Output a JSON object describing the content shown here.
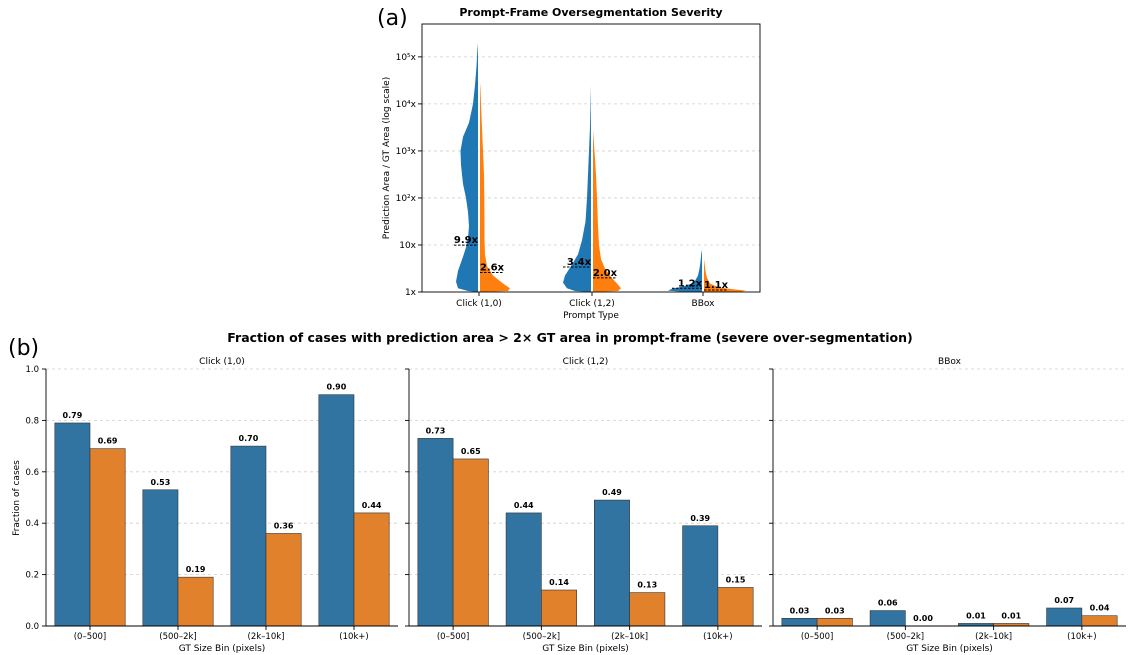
{
  "panel_a": {
    "label": "(a)",
    "chart_data": {
      "type": "violin",
      "title": "Prompt-Frame Oversegmentation Severity",
      "xlabel": "Prompt Type",
      "ylabel": "Prediction Area / GT Area (log scale)",
      "yscale": "log",
      "ylim": [
        1,
        500000
      ],
      "ytick_labels": [
        "1x",
        "10x",
        "10²x",
        "10³x",
        "10⁴x",
        "10⁵x"
      ],
      "ytick_values": [
        1,
        10,
        100,
        1000,
        10000,
        100000
      ],
      "categories": [
        "Click (1,0)",
        "Click (1,2)",
        "BBox"
      ],
      "grid": true,
      "medians": [
        {
          "category": "Click (1,0)",
          "left": 9.9,
          "right": 2.6,
          "left_label": "9.9x",
          "right_label": "2.6x"
        },
        {
          "category": "Click (1,2)",
          "left": 3.4,
          "right": 2.0,
          "left_label": "3.4x",
          "right_label": "2.0x"
        },
        {
          "category": "BBox",
          "left": 1.2,
          "right": 1.1,
          "left_label": "1.2x",
          "right_label": "1.1x"
        }
      ],
      "max_values": [
        {
          "category": "Click (1,0)",
          "left": 200000,
          "right": 20000
        },
        {
          "category": "Click (1,2)",
          "left": 30000,
          "right": 1000
        },
        {
          "category": "BBox",
          "left": 7,
          "right": 4
        }
      ]
    }
  },
  "panel_b": {
    "label": "(b)",
    "title": "Fraction of cases with prediction area > 2× GT area in prompt-frame (severe over-segmentation)",
    "ylabel": "Fraction of cases",
    "xlabel": "GT Size Bin (pixels)",
    "ytick_labels": [
      "0.0",
      "0.2",
      "0.4",
      "0.6",
      "0.8",
      "1.0"
    ],
    "chart_data": [
      {
        "type": "bar",
        "title": "Click (1,0)",
        "categories": [
          "(0–500]",
          "(500–2k]",
          "(2k–10k]",
          "(10k+)"
        ],
        "ylim": [
          0,
          1.0
        ],
        "series": [
          {
            "values": [
              0.79,
              0.53,
              0.7,
              0.9
            ],
            "labels": [
              "0.79",
              "0.53",
              "0.70",
              "0.90"
            ],
            "color": "#3274a1"
          },
          {
            "values": [
              0.69,
              0.19,
              0.36,
              0.44
            ],
            "labels": [
              "0.69",
              "0.19",
              "0.36",
              "0.44"
            ],
            "color": "#e1812c"
          }
        ]
      },
      {
        "type": "bar",
        "title": "Click (1,2)",
        "categories": [
          "(0–500]",
          "(500–2k]",
          "(2k–10k]",
          "(10k+)"
        ],
        "ylim": [
          0,
          1.0
        ],
        "series": [
          {
            "values": [
              0.73,
              0.44,
              0.49,
              0.39
            ],
            "labels": [
              "0.73",
              "0.44",
              "0.49",
              "0.39"
            ],
            "color": "#3274a1"
          },
          {
            "values": [
              0.65,
              0.14,
              0.13,
              0.15
            ],
            "labels": [
              "0.65",
              "0.14",
              "0.13",
              "0.15"
            ],
            "color": "#e1812c"
          }
        ]
      },
      {
        "type": "bar",
        "title": "BBox",
        "categories": [
          "(0–500]",
          "(500–2k]",
          "(2k–10k]",
          "(10k+)"
        ],
        "ylim": [
          0,
          1.0
        ],
        "series": [
          {
            "values": [
              0.03,
              0.06,
              0.01,
              0.07
            ],
            "labels": [
              "0.03",
              "0.06",
              "0.01",
              "0.07"
            ],
            "color": "#3274a1"
          },
          {
            "values": [
              0.03,
              0.0,
              0.01,
              0.04
            ],
            "labels": [
              "0.03",
              "0.00",
              "0.01",
              "0.04"
            ],
            "color": "#e1812c"
          }
        ]
      }
    ]
  },
  "colors": {
    "blue": "#1f77b4",
    "orange": "#ff7f0e",
    "bar_blue": "#3274a1",
    "bar_orange": "#e1812c"
  }
}
